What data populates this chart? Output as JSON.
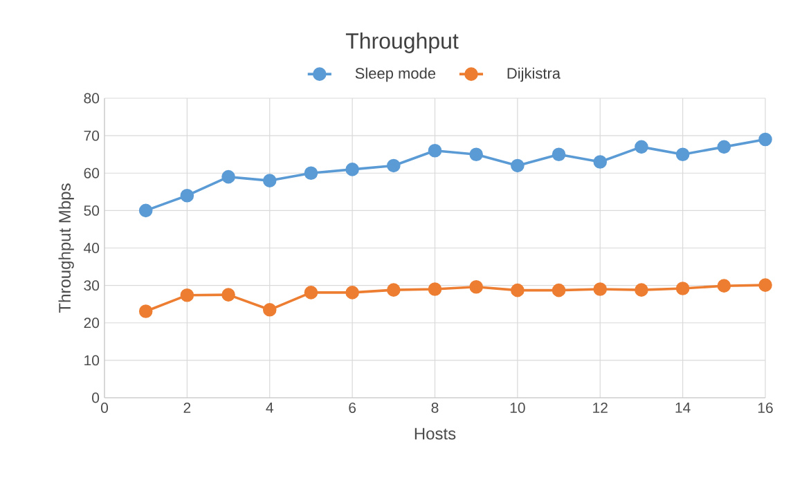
{
  "chart_data": {
    "type": "line",
    "title": "Throughput",
    "xlabel": "Hosts",
    "ylabel": "Throughput Mbps",
    "x": [
      1,
      2,
      3,
      4,
      5,
      6,
      7,
      8,
      9,
      10,
      11,
      12,
      13,
      14,
      15,
      16
    ],
    "series": [
      {
        "name": "Sleep mode",
        "color": "#5b9bd5",
        "values": [
          50,
          54,
          59,
          58,
          60,
          61,
          62,
          66,
          65,
          62,
          65,
          63,
          67,
          65,
          67,
          69
        ]
      },
      {
        "name": "Dijkistra",
        "color": "#ed7d31",
        "values": [
          23.1,
          27.4,
          27.5,
          23.5,
          28.1,
          28.1,
          28.8,
          29,
          29.6,
          28.7,
          28.7,
          29,
          28.8,
          29.2,
          29.9,
          30.1
        ]
      }
    ],
    "xlim": [
      0,
      16
    ],
    "xticks": [
      0,
      2,
      4,
      6,
      8,
      10,
      12,
      14,
      16
    ],
    "ylim": [
      0,
      80
    ],
    "yticks": [
      0,
      10,
      20,
      30,
      40,
      50,
      60,
      70,
      80
    ],
    "grid": true,
    "legend": "top",
    "marker": "circle",
    "line_style": "solid"
  }
}
